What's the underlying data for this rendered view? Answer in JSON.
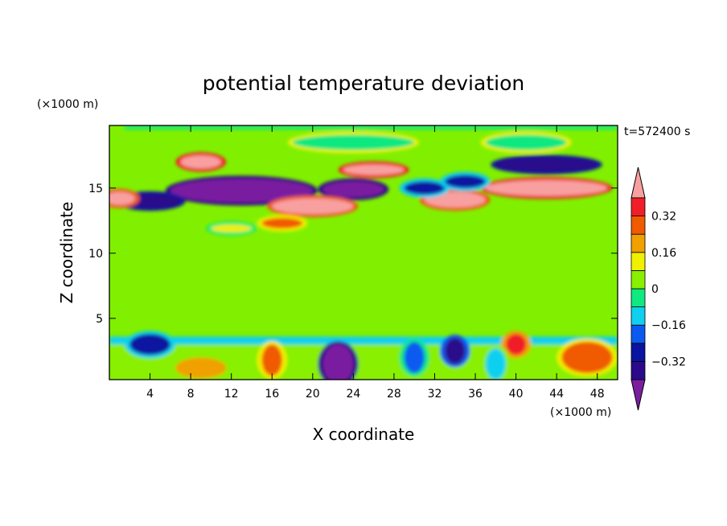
{
  "chart_data": {
    "type": "heatmap",
    "title": "potential temperature deviation",
    "xlabel": "X coordinate",
    "ylabel": "Z coordinate",
    "x_unit": "(×1000 m)",
    "y_unit": "(×1000 m)",
    "time_label": "t=572400 s",
    "xlim": [
      0,
      50
    ],
    "ylim": [
      0.3,
      19.8
    ],
    "x_ticks": [
      4,
      8,
      12,
      16,
      20,
      24,
      28,
      32,
      36,
      40,
      44,
      48
    ],
    "y_ticks": [
      5,
      10,
      15
    ],
    "colorbar": {
      "levels": [
        -0.48,
        -0.4,
        -0.32,
        -0.24,
        -0.16,
        -0.08,
        0,
        0.08,
        0.16,
        0.24,
        0.32,
        0.4,
        0.48
      ],
      "tick_values": [
        -0.32,
        -0.16,
        0,
        0.16,
        0.32
      ],
      "tick_labels": [
        "−0.32",
        "−0.16",
        "0",
        "0.16",
        "0.32"
      ],
      "colors": [
        "#7a1fa0",
        "#2a0a8a",
        "#0a14a0",
        "#0a5af0",
        "#10d0f0",
        "#10e880",
        "#88f000",
        "#f0f000",
        "#f0a000",
        "#f05a00",
        "#f01e28",
        "#f8a0a0"
      ],
      "extend": "both"
    },
    "background_color": "#80f000",
    "features": [
      {
        "x": [
          0,
          50
        ],
        "z": [
          0.3,
          3.0
        ],
        "value": 0.02
      },
      {
        "x": [
          0,
          50
        ],
        "z": [
          3.0,
          3.6
        ],
        "value": -0.1
      },
      {
        "x": [
          1.5,
          50
        ],
        "z": [
          19.5,
          19.8
        ],
        "value": -0.05
      },
      {
        "cx": 13,
        "cz": 14.8,
        "rx": 7,
        "rz": 0.9,
        "value": -0.5
      },
      {
        "cx": 24,
        "cz": 14.9,
        "rx": 3,
        "rz": 0.6,
        "value": -0.5
      },
      {
        "cx": 43,
        "cz": 15.0,
        "rx": 6,
        "rz": 0.6,
        "value": 0.5
      },
      {
        "cx": 9,
        "cz": 17.0,
        "rx": 2,
        "rz": 0.5,
        "value": 0.5
      },
      {
        "cx": 26,
        "cz": 16.4,
        "rx": 3,
        "rz": 0.4,
        "value": 0.5
      },
      {
        "cx": 34,
        "cz": 14.1,
        "rx": 3,
        "rz": 0.6,
        "value": 0.45
      },
      {
        "cx": 20,
        "cz": 13.6,
        "rx": 4,
        "rz": 0.6,
        "value": 0.45
      },
      {
        "cx": 43,
        "cz": 16.8,
        "rx": 5,
        "rz": 0.5,
        "value": -0.4
      },
      {
        "cx": 4,
        "cz": 14.0,
        "rx": 3,
        "rz": 0.5,
        "value": -0.4
      },
      {
        "cx": 31,
        "cz": 15.0,
        "rx": 2,
        "rz": 0.5,
        "value": -0.3
      },
      {
        "cx": 35,
        "cz": 15.5,
        "rx": 2,
        "rz": 0.5,
        "value": -0.3
      },
      {
        "cx": 1,
        "cz": 14.2,
        "rx": 1.5,
        "rz": 0.5,
        "value": 0.45
      },
      {
        "cx": 17,
        "cz": 12.3,
        "rx": 2,
        "rz": 0.4,
        "value": 0.3
      },
      {
        "cx": 22.5,
        "cz": 1.5,
        "rx": 1.5,
        "rz": 1.5,
        "value": -0.5
      },
      {
        "cx": 16,
        "cz": 1.8,
        "rx": 1.0,
        "rz": 1.2,
        "value": 0.3
      },
      {
        "cx": 9,
        "cz": 1.2,
        "rx": 2.5,
        "rz": 0.8,
        "value": 0.2
      },
      {
        "cx": 47,
        "cz": 2.0,
        "rx": 2.5,
        "rz": 1.2,
        "value": 0.25
      },
      {
        "cx": 34,
        "cz": 2.5,
        "rx": 1.0,
        "rz": 1.0,
        "value": -0.35
      },
      {
        "cx": 40,
        "cz": 3.0,
        "rx": 1.0,
        "rz": 0.8,
        "value": 0.35
      },
      {
        "cx": 30,
        "cz": 2.0,
        "rx": 1.0,
        "rz": 1.2,
        "value": -0.2
      },
      {
        "cx": 4,
        "cz": 3.0,
        "rx": 2,
        "rz": 0.8,
        "value": -0.25
      },
      {
        "cx": 38,
        "cz": 1.5,
        "rx": 1.0,
        "rz": 1.2,
        "value": -0.15
      },
      {
        "cx": 12,
        "cz": 11.9,
        "rx": 2,
        "rz": 0.3,
        "value": 0.15
      },
      {
        "cx": 24,
        "cz": 18.5,
        "rx": 6,
        "rz": 0.6,
        "value": -0.08
      },
      {
        "cx": 41,
        "cz": 18.5,
        "rx": 4,
        "rz": 0.6,
        "value": -0.08
      }
    ]
  }
}
